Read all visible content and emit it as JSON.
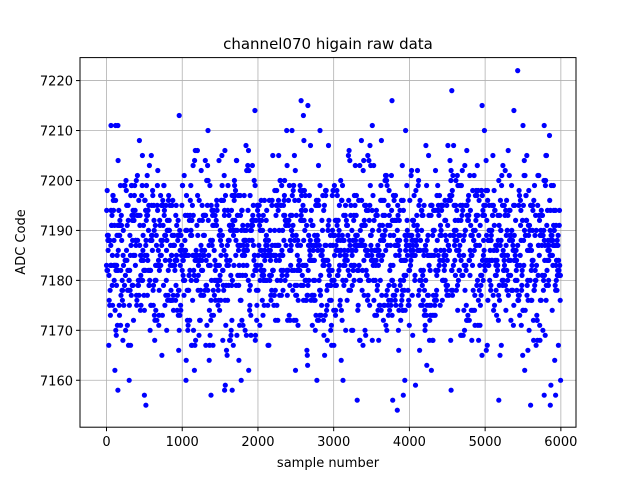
{
  "chart_data": {
    "type": "scatter",
    "title": "channel070 higain raw data",
    "xlabel": "sample number",
    "ylabel": "ADC Code",
    "xlim": [
      -350,
      6200
    ],
    "ylim": [
      7150.6,
      7224.6
    ],
    "xticks": [
      0,
      1000,
      2000,
      3000,
      4000,
      5000,
      6000
    ],
    "yticks": [
      7160,
      7170,
      7180,
      7190,
      7200,
      7210,
      7220
    ],
    "xtick_labels": [
      "0",
      "1000",
      "2000",
      "3000",
      "4000",
      "5000",
      "6000"
    ],
    "ytick_labels": [
      "7160",
      "7170",
      "7180",
      "7190",
      "7200",
      "7210",
      "7220"
    ],
    "grid": true,
    "marker": "filled-circle",
    "color": "#0000ff",
    "series": [
      {
        "points_note_x_sample_count": 6000,
        "stats": {
          "center": 7185.5,
          "sigma": 9.0
        },
        "outliers": [
          [
            5430,
            7222
          ],
          [
            4560,
            7218
          ],
          [
            2570,
            7216
          ],
          [
            3770,
            7216
          ],
          [
            2660,
            7215
          ],
          [
            4960,
            7215
          ],
          [
            1960,
            7214
          ],
          [
            5380,
            7214
          ],
          [
            960,
            7213
          ],
          [
            2600,
            7213
          ],
          [
            60,
            7211
          ],
          [
            150,
            7211
          ],
          [
            120,
            7211
          ],
          [
            3510,
            7211
          ],
          [
            5500,
            7211
          ],
          [
            5780,
            7211
          ],
          [
            2820,
            7210
          ],
          [
            3950,
            7210
          ],
          [
            4990,
            7210
          ],
          [
            1340,
            7210
          ],
          [
            2380,
            7210
          ],
          [
            2450,
            7210
          ],
          [
            3780,
            7156
          ],
          [
            3310,
            7156
          ],
          [
            500,
            7157
          ],
          [
            520,
            7155
          ],
          [
            1380,
            7157
          ],
          [
            3920,
            7157
          ],
          [
            5780,
            7157
          ],
          [
            5930,
            7157
          ],
          [
            150,
            7158
          ],
          [
            5600,
            7155
          ],
          [
            5860,
            7155
          ],
          [
            5180,
            7156
          ],
          [
            1560,
            7158
          ],
          [
            1660,
            7158
          ],
          [
            3840,
            7154
          ],
          [
            4550,
            7158
          ],
          [
            300,
            7160
          ]
        ]
      }
    ]
  }
}
